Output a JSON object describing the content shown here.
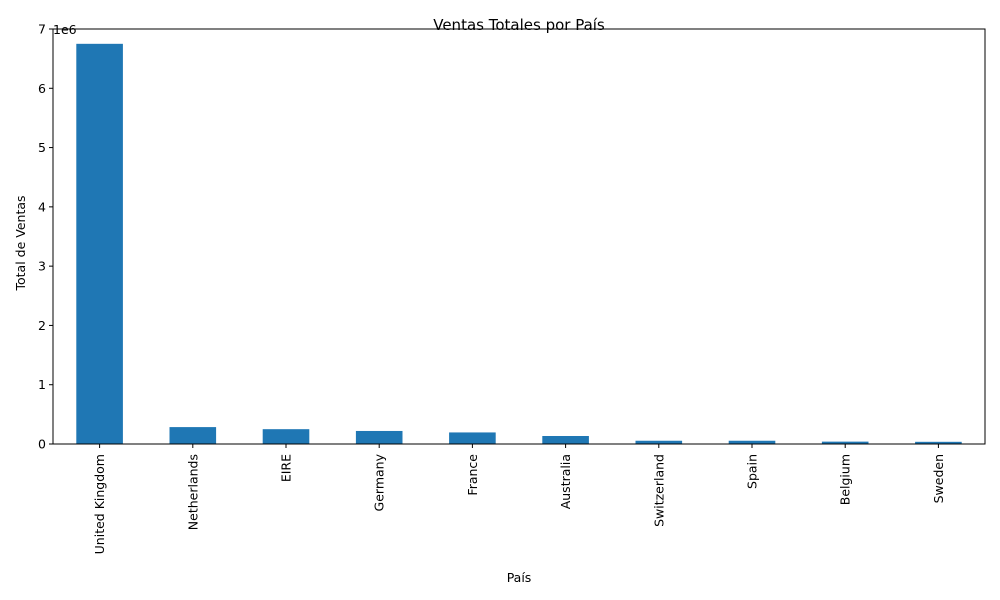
{
  "chart_data": {
    "type": "bar",
    "title": "Ventas Totales por País",
    "xlabel": "País",
    "ylabel": "Total de Ventas",
    "y_multiplier_label": "1e6",
    "categories": [
      "United Kingdom",
      "Netherlands",
      "EIRE",
      "Germany",
      "France",
      "Australia",
      "Switzerland",
      "Spain",
      "Belgium",
      "Sweden"
    ],
    "values": [
      6750000,
      285000,
      250000,
      220000,
      195000,
      135000,
      55000,
      55000,
      40000,
      37000
    ],
    "ylim": [
      0,
      7000000
    ],
    "yticks": [
      0,
      1000000,
      2000000,
      3000000,
      4000000,
      5000000,
      6000000,
      7000000
    ],
    "ytick_labels": [
      "0",
      "1",
      "2",
      "3",
      "4",
      "5",
      "6",
      "7"
    ],
    "grid": false,
    "colors": {
      "bar": "#1f77b4"
    }
  }
}
